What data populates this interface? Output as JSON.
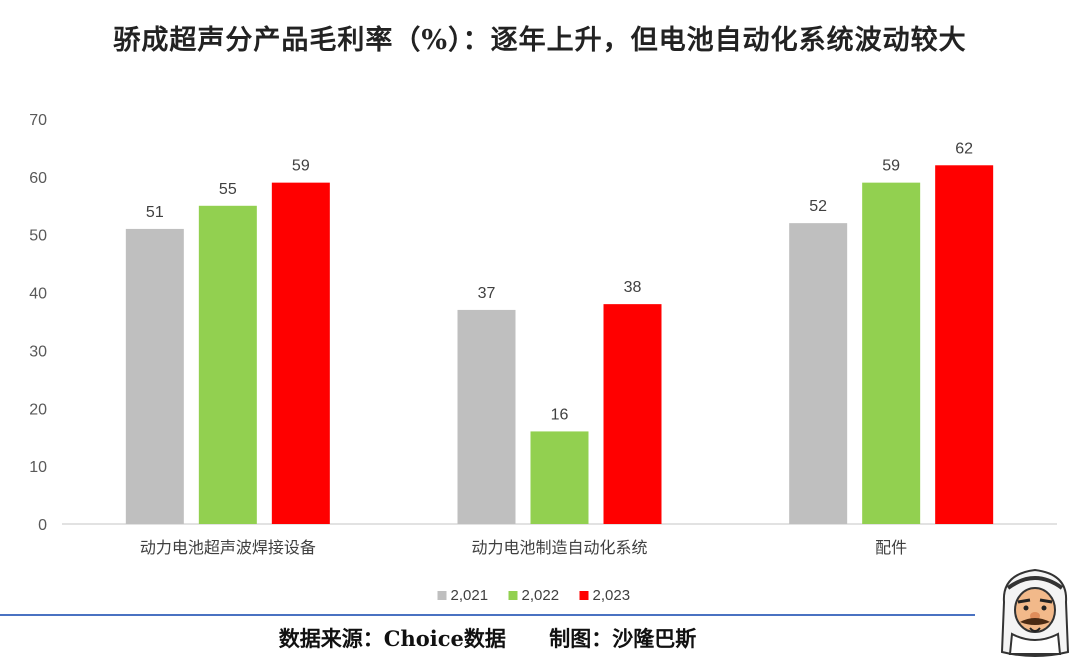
{
  "title": "骄成超声分产品毛利率（%）：逐年上升，但电池自动化系统波动较大",
  "footer": {
    "source": "数据来源：Choice数据",
    "author": "制图：沙隆巴斯"
  },
  "chart_data": {
    "type": "bar",
    "title": "骄成超声分产品毛利率（%）：逐年上升，但电池自动化系统波动较大",
    "categories": [
      "动力电池超声波焊接设备",
      "动力电池制造自动化系统",
      "配件"
    ],
    "series": [
      {
        "name": "2,021",
        "color": "#bfbfbf",
        "values": [
          51,
          37,
          52
        ]
      },
      {
        "name": "2,022",
        "color": "#92d050",
        "values": [
          55,
          16,
          59
        ]
      },
      {
        "name": "2,023",
        "color": "#ff0000",
        "values": [
          59,
          38,
          62
        ]
      }
    ],
    "ylim": [
      0,
      70
    ],
    "yticks": [
      0,
      10,
      20,
      30,
      40,
      50,
      60,
      70
    ],
    "grid": false,
    "legend": "bottom",
    "data_labels": [
      [
        "51",
        "37",
        "52"
      ],
      [
        "55",
        "16",
        "59"
      ],
      [
        "59",
        "38",
        "62"
      ]
    ]
  }
}
